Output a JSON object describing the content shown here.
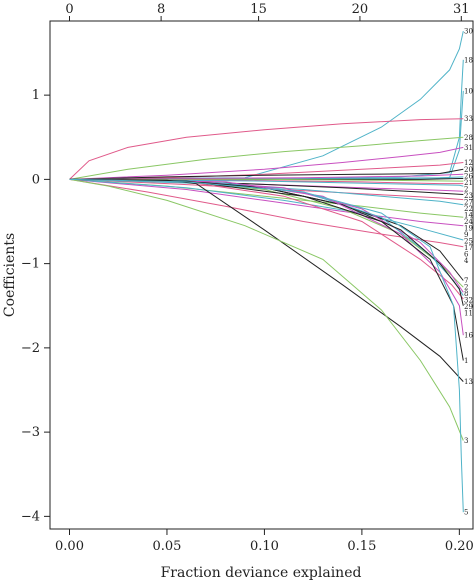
{
  "chart_data": {
    "type": "line",
    "title": "",
    "xlabel": "Fraction deviance explained",
    "ylabel": "Coefficients",
    "xlim": [
      -0.01,
      0.207
    ],
    "ylim": [
      -4.15,
      1.88
    ],
    "x_ticks": [
      "0.00",
      "0.05",
      "0.10",
      "0.15",
      "0.20"
    ],
    "y_ticks": [
      "1",
      "0",
      "−1",
      "−2",
      "−3",
      "−4"
    ],
    "top_axis": {
      "ticks": [
        {
          "x": 0.0,
          "label": "0"
        },
        {
          "x": 0.047,
          "label": "8"
        },
        {
          "x": 0.097,
          "label": "15"
        },
        {
          "x": 0.149,
          "label": "20"
        },
        {
          "x": 0.201,
          "label": "31"
        }
      ]
    },
    "grid": false,
    "legend": "none",
    "series": [
      {
        "label": "30",
        "color": "#4fb3c8",
        "points": [
          [
            0,
            0
          ],
          [
            0.03,
            0.01
          ],
          [
            0.09,
            0.02
          ],
          [
            0.13,
            0.28
          ],
          [
            0.16,
            0.62
          ],
          [
            0.18,
            0.95
          ],
          [
            0.195,
            1.3
          ],
          [
            0.2,
            1.55
          ],
          [
            0.202,
            1.76
          ]
        ]
      },
      {
        "label": "18",
        "color": "#4fb3c8",
        "points": [
          [
            0,
            0
          ],
          [
            0.1,
            0.0
          ],
          [
            0.17,
            0.03
          ],
          [
            0.195,
            0.08
          ],
          [
            0.2,
            0.5
          ],
          [
            0.201,
            1.0
          ],
          [
            0.202,
            1.42
          ]
        ]
      },
      {
        "label": "10",
        "color": "#4fb3c8",
        "points": [
          [
            0,
            0
          ],
          [
            0.15,
            0.0
          ],
          [
            0.195,
            0.02
          ],
          [
            0.2,
            0.35
          ],
          [
            0.201,
            0.7
          ],
          [
            0.202,
            1.05
          ]
        ]
      },
      {
        "label": "33",
        "color": "#e05a8a",
        "points": [
          [
            0,
            0
          ],
          [
            0.01,
            0.22
          ],
          [
            0.03,
            0.38
          ],
          [
            0.06,
            0.5
          ],
          [
            0.1,
            0.59
          ],
          [
            0.14,
            0.66
          ],
          [
            0.18,
            0.71
          ],
          [
            0.202,
            0.72
          ]
        ]
      },
      {
        "label": "28",
        "color": "#8ac765",
        "points": [
          [
            0,
            0
          ],
          [
            0.03,
            0.12
          ],
          [
            0.07,
            0.24
          ],
          [
            0.11,
            0.33
          ],
          [
            0.15,
            0.4
          ],
          [
            0.18,
            0.46
          ],
          [
            0.202,
            0.5
          ]
        ]
      },
      {
        "label": "31",
        "color": "#c850c0",
        "points": [
          [
            0,
            0
          ],
          [
            0.05,
            0.05
          ],
          [
            0.1,
            0.12
          ],
          [
            0.14,
            0.2
          ],
          [
            0.17,
            0.27
          ],
          [
            0.19,
            0.32
          ],
          [
            0.202,
            0.38
          ]
        ]
      },
      {
        "label": "12",
        "color": "#e05a8a",
        "points": [
          [
            0,
            0
          ],
          [
            0.05,
            0.02
          ],
          [
            0.1,
            0.06
          ],
          [
            0.15,
            0.12
          ],
          [
            0.19,
            0.17
          ],
          [
            0.202,
            0.2
          ]
        ]
      },
      {
        "label": "20",
        "color": "#222222",
        "points": [
          [
            0,
            0
          ],
          [
            0.05,
            0.03
          ],
          [
            0.1,
            0.05
          ],
          [
            0.15,
            0.06
          ],
          [
            0.19,
            0.07
          ],
          [
            0.202,
            0.12
          ]
        ]
      },
      {
        "label": "26",
        "color": "#c850c0",
        "points": [
          [
            0,
            0
          ],
          [
            0.06,
            0.01
          ],
          [
            0.12,
            0.02
          ],
          [
            0.18,
            0.04
          ],
          [
            0.202,
            0.06
          ]
        ]
      },
      {
        "label": "21",
        "color": "#4fb3c8",
        "points": [
          [
            0,
            0
          ],
          [
            0.08,
            0.0
          ],
          [
            0.15,
            0.01
          ],
          [
            0.19,
            0.02
          ],
          [
            0.202,
            0.03
          ]
        ]
      },
      {
        "label": "2",
        "color": "#222222",
        "points": [
          [
            0,
            0
          ],
          [
            0.12,
            0.0
          ],
          [
            0.18,
            0.0
          ],
          [
            0.2,
            0.01
          ],
          [
            0.202,
            0.01
          ]
        ]
      },
      {
        "label": "23",
        "color": "#8ac765",
        "points": [
          [
            0,
            0
          ],
          [
            0.1,
            0.0
          ],
          [
            0.16,
            -0.01
          ],
          [
            0.2,
            -0.02
          ],
          [
            0.202,
            -0.02
          ]
        ]
      },
      {
        "label": "27",
        "color": "#e05a8a",
        "points": [
          [
            0,
            0
          ],
          [
            0.08,
            -0.01
          ],
          [
            0.15,
            -0.03
          ],
          [
            0.19,
            -0.05
          ],
          [
            0.202,
            -0.05
          ]
        ]
      },
      {
        "label": "22",
        "color": "#4fb3c8",
        "points": [
          [
            0,
            0
          ],
          [
            0.1,
            -0.02
          ],
          [
            0.16,
            -0.05
          ],
          [
            0.2,
            -0.07
          ],
          [
            0.202,
            -0.08
          ]
        ]
      },
      {
        "label": "14",
        "color": "#c850c0",
        "points": [
          [
            0,
            0
          ],
          [
            0.05,
            -0.03
          ],
          [
            0.1,
            -0.06
          ],
          [
            0.15,
            -0.1
          ],
          [
            0.19,
            -0.13
          ],
          [
            0.202,
            -0.14
          ]
        ]
      },
      {
        "label": "24",
        "color": "#222222",
        "points": [
          [
            0,
            0
          ],
          [
            0.09,
            -0.05
          ],
          [
            0.14,
            -0.1
          ],
          [
            0.18,
            -0.15
          ],
          [
            0.202,
            -0.18
          ]
        ]
      },
      {
        "label": "19",
        "color": "#e05a8a",
        "points": [
          [
            0,
            0
          ],
          [
            0.05,
            -0.05
          ],
          [
            0.1,
            -0.11
          ],
          [
            0.15,
            -0.17
          ],
          [
            0.19,
            -0.22
          ],
          [
            0.202,
            -0.24
          ]
        ]
      },
      {
        "label": "9",
        "color": "#4fb3c8",
        "points": [
          [
            0,
            0
          ],
          [
            0.07,
            -0.05
          ],
          [
            0.12,
            -0.12
          ],
          [
            0.16,
            -0.2
          ],
          [
            0.19,
            -0.26
          ],
          [
            0.202,
            -0.3
          ]
        ]
      },
      {
        "label": "25",
        "color": "#8ac765",
        "points": [
          [
            0,
            0
          ],
          [
            0.05,
            -0.08
          ],
          [
            0.1,
            -0.2
          ],
          [
            0.15,
            -0.32
          ],
          [
            0.18,
            -0.4
          ],
          [
            0.202,
            -0.45
          ]
        ]
      },
      {
        "label": "17",
        "color": "#c850c0",
        "points": [
          [
            0,
            0
          ],
          [
            0.06,
            -0.12
          ],
          [
            0.1,
            -0.25
          ],
          [
            0.14,
            -0.38
          ],
          [
            0.18,
            -0.5
          ],
          [
            0.202,
            -0.55
          ]
        ]
      },
      {
        "label": "6",
        "color": "#4fb3c8",
        "points": [
          [
            0,
            0
          ],
          [
            0.06,
            -0.1
          ],
          [
            0.11,
            -0.25
          ],
          [
            0.15,
            -0.4
          ],
          [
            0.18,
            -0.58
          ],
          [
            0.202,
            -0.72
          ]
        ]
      },
      {
        "label": "4",
        "color": "#e05a8a",
        "points": [
          [
            0,
            0
          ],
          [
            0.04,
            -0.15
          ],
          [
            0.08,
            -0.32
          ],
          [
            0.12,
            -0.5
          ],
          [
            0.16,
            -0.65
          ],
          [
            0.19,
            -0.75
          ],
          [
            0.202,
            -0.8
          ]
        ]
      },
      {
        "label": "7",
        "color": "#222222",
        "points": [
          [
            0,
            0
          ],
          [
            0.06,
            -0.02
          ],
          [
            0.1,
            -0.1
          ],
          [
            0.14,
            -0.3
          ],
          [
            0.17,
            -0.55
          ],
          [
            0.19,
            -0.85
          ],
          [
            0.202,
            -1.2
          ]
        ]
      },
      {
        "label": "2",
        "color": "#8ac765",
        "points": [
          [
            0,
            0
          ],
          [
            0.06,
            -0.03
          ],
          [
            0.1,
            -0.12
          ],
          [
            0.14,
            -0.35
          ],
          [
            0.17,
            -0.65
          ],
          [
            0.19,
            -1.0
          ],
          [
            0.202,
            -1.28
          ]
        ]
      },
      {
        "label": "8",
        "color": "#c850c0",
        "points": [
          [
            0,
            0
          ],
          [
            0.06,
            -0.02
          ],
          [
            0.11,
            -0.1
          ],
          [
            0.15,
            -0.35
          ],
          [
            0.18,
            -0.75
          ],
          [
            0.195,
            -1.1
          ],
          [
            0.202,
            -1.34
          ]
        ]
      },
      {
        "label": "32",
        "color": "#4fb3c8",
        "points": [
          [
            0,
            0
          ],
          [
            0.07,
            -0.02
          ],
          [
            0.12,
            -0.15
          ],
          [
            0.16,
            -0.45
          ],
          [
            0.185,
            -0.9
          ],
          [
            0.197,
            -1.2
          ],
          [
            0.202,
            -1.38
          ]
        ]
      },
      {
        "label": "29",
        "color": "#e05a8a",
        "points": [
          [
            0,
            0
          ],
          [
            0.06,
            -0.03
          ],
          [
            0.11,
            -0.2
          ],
          [
            0.15,
            -0.5
          ],
          [
            0.18,
            -0.95
          ],
          [
            0.196,
            -1.25
          ],
          [
            0.202,
            -1.42
          ]
        ]
      },
      {
        "label": "11",
        "color": "#222222",
        "points": [
          [
            0,
            0
          ],
          [
            0.06,
            -0.02
          ],
          [
            0.1,
            -0.1
          ],
          [
            0.14,
            -0.3
          ],
          [
            0.17,
            -0.6
          ],
          [
            0.19,
            -1.0
          ],
          [
            0.2,
            -1.3
          ],
          [
            0.202,
            -1.5
          ]
        ]
      },
      {
        "label": "16",
        "color": "#c850c0",
        "points": [
          [
            0,
            0
          ],
          [
            0.08,
            -0.03
          ],
          [
            0.13,
            -0.2
          ],
          [
            0.17,
            -0.65
          ],
          [
            0.19,
            -1.1
          ],
          [
            0.2,
            -1.5
          ],
          [
            0.202,
            -1.85
          ]
        ]
      },
      {
        "label": "1",
        "color": "#222222",
        "points": [
          [
            0,
            0
          ],
          [
            0.06,
            -0.02
          ],
          [
            0.12,
            -0.2
          ],
          [
            0.16,
            -0.5
          ],
          [
            0.185,
            -0.95
          ],
          [
            0.197,
            -1.5
          ],
          [
            0.202,
            -2.15
          ]
        ]
      },
      {
        "label": "13",
        "color": "#222222",
        "points": [
          [
            0,
            0
          ],
          [
            0.05,
            -0.01
          ],
          [
            0.065,
            -0.05
          ],
          [
            0.1,
            -0.6
          ],
          [
            0.14,
            -1.25
          ],
          [
            0.17,
            -1.75
          ],
          [
            0.19,
            -2.1
          ],
          [
            0.202,
            -2.4
          ]
        ]
      },
      {
        "label": "3",
        "color": "#8ac765",
        "points": [
          [
            0,
            0
          ],
          [
            0.02,
            -0.08
          ],
          [
            0.05,
            -0.25
          ],
          [
            0.09,
            -0.55
          ],
          [
            0.13,
            -0.95
          ],
          [
            0.16,
            -1.55
          ],
          [
            0.18,
            -2.15
          ],
          [
            0.195,
            -2.7
          ],
          [
            0.202,
            -3.1
          ]
        ]
      },
      {
        "label": "5",
        "color": "#4fb3c8",
        "points": [
          [
            0,
            0
          ],
          [
            0.06,
            -0.03
          ],
          [
            0.12,
            -0.15
          ],
          [
            0.16,
            -0.4
          ],
          [
            0.185,
            -0.8
          ],
          [
            0.197,
            -1.5
          ],
          [
            0.2,
            -2.5
          ],
          [
            0.201,
            -3.3
          ],
          [
            0.202,
            -3.95
          ]
        ]
      }
    ]
  }
}
